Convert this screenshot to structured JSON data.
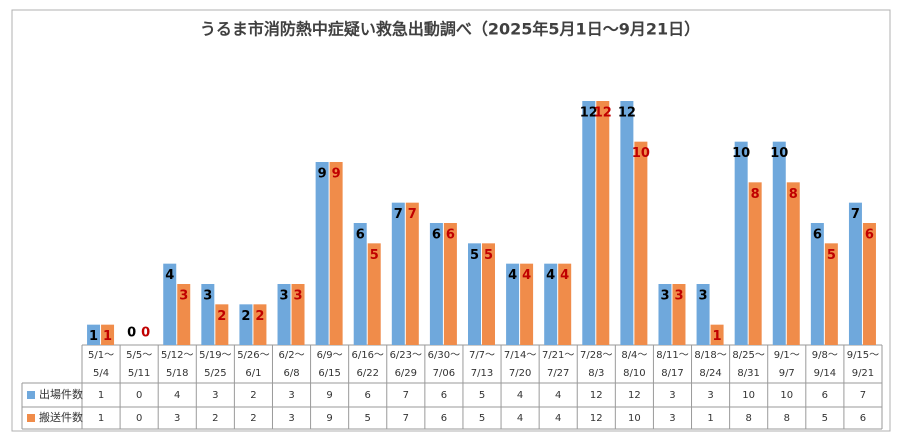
{
  "chart_data": {
    "type": "bar",
    "title": "うるま市消防熱中症疑い救急出動調べ（2025年5月1日～9月21日）",
    "categories": [
      [
        "5/1～",
        "5/4"
      ],
      [
        "5/5～",
        "5/11"
      ],
      [
        "5/12～",
        "5/18"
      ],
      [
        "5/19～",
        "5/25"
      ],
      [
        "5/26～",
        "6/1"
      ],
      [
        "6/2～",
        "6/8"
      ],
      [
        "6/9～",
        "6/15"
      ],
      [
        "6/16～",
        "6/22"
      ],
      [
        "6/23～",
        "6/29"
      ],
      [
        "6/30～",
        "7/06"
      ],
      [
        "7/7～",
        "7/13"
      ],
      [
        "7/14～",
        "7/20"
      ],
      [
        "7/21～",
        "7/27"
      ],
      [
        "7/28～",
        "8/3"
      ],
      [
        "8/4～",
        "8/10"
      ],
      [
        "8/11～",
        "8/17"
      ],
      [
        "8/18～",
        "8/24"
      ],
      [
        "8/25～",
        "8/31"
      ],
      [
        "9/1～",
        "9/7"
      ],
      [
        "9/8～",
        "9/14"
      ],
      [
        "9/15～",
        "9/21"
      ]
    ],
    "series": [
      {
        "name": "出場件数",
        "color": "#6fa8dc",
        "label_color": "#000000",
        "values": [
          1,
          0,
          4,
          3,
          2,
          3,
          9,
          6,
          7,
          6,
          5,
          4,
          4,
          12,
          12,
          3,
          3,
          10,
          10,
          6,
          7
        ]
      },
      {
        "name": "搬送件数",
        "color": "#f08c4a",
        "label_color": "#c00000",
        "values": [
          1,
          0,
          3,
          2,
          2,
          3,
          9,
          5,
          7,
          6,
          5,
          4,
          4,
          12,
          10,
          3,
          1,
          8,
          8,
          5,
          6
        ]
      }
    ],
    "ylim": [
      0,
      12
    ]
  }
}
